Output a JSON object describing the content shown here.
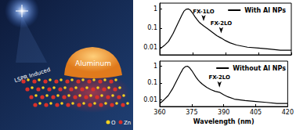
{
  "chart_data": [
    {
      "type": "line",
      "log": "y",
      "grid": false,
      "legend": "upper right",
      "tick_labels": "y",
      "x": [
        360,
        362,
        364,
        366,
        368,
        370,
        371,
        372,
        373,
        374,
        375,
        376,
        377,
        378,
        379,
        380,
        382,
        384,
        386,
        388,
        390,
        392,
        395,
        400,
        405,
        410,
        415,
        420
      ],
      "series": [
        {
          "name": "With Al NPs",
          "color": "#000000",
          "values": [
            0.008,
            0.012,
            0.02,
            0.05,
            0.15,
            0.45,
            0.75,
            0.95,
            1.0,
            0.85,
            0.6,
            0.4,
            0.28,
            0.2,
            0.16,
            0.13,
            0.09,
            0.06,
            0.04,
            0.03,
            0.022,
            0.017,
            0.013,
            0.01,
            0.009,
            0.008,
            0.007,
            0.007
          ]
        }
      ],
      "xlim": [
        360,
        420
      ],
      "xticks": [
        360,
        375,
        390,
        405,
        420
      ],
      "ylim": [
        0.004,
        2
      ],
      "yticks": [
        0.01,
        0.1,
        1
      ],
      "annotations": [
        {
          "text": "FX-1LO",
          "x": 380,
          "y": 0.13
        },
        {
          "text": "FX-2LO",
          "x": 388,
          "y": 0.03
        }
      ]
    },
    {
      "type": "line",
      "log": "y",
      "grid": false,
      "legend": "upper right",
      "x": [
        360,
        362,
        364,
        366,
        368,
        370,
        371,
        372,
        373,
        374,
        375,
        376,
        377,
        378,
        379,
        380,
        382,
        384,
        386,
        388,
        390,
        392,
        395,
        400,
        405,
        410,
        415,
        420
      ],
      "series": [
        {
          "name": "Without Al NPs",
          "color": "#000000",
          "values": [
            0.006,
            0.01,
            0.018,
            0.045,
            0.14,
            0.43,
            0.72,
            0.93,
            1.0,
            0.8,
            0.55,
            0.35,
            0.22,
            0.15,
            0.11,
            0.085,
            0.055,
            0.04,
            0.032,
            0.028,
            0.02,
            0.015,
            0.011,
            0.009,
            0.008,
            0.007,
            0.006,
            0.006
          ]
        }
      ],
      "xlabel": "Wavelength (nm)",
      "xlim": [
        360,
        420
      ],
      "xticks": [
        360,
        375,
        390,
        405,
        420
      ],
      "ylim": [
        0.004,
        2
      ],
      "yticks": [
        0.01,
        0.1,
        1
      ],
      "annotations": [
        {
          "text": "FX-2LO",
          "x": 388,
          "y": 0.028
        }
      ]
    }
  ],
  "diagram": {
    "labels": [
      "LSPR Induced",
      "Aluminum"
    ],
    "legend": [
      {
        "label": "O",
        "color": "#f5d020"
      },
      {
        "label": "Zn",
        "color": "#d8302a"
      }
    ]
  }
}
